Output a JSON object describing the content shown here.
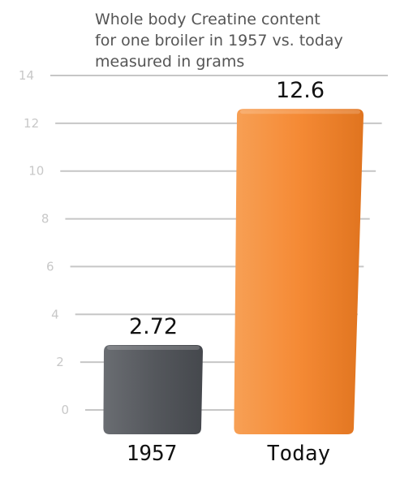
{
  "chart_data": {
    "type": "bar",
    "title_lines": [
      "Whole body Creatine content",
      "for one broiler in 1957 vs. today",
      "measured in grams"
    ],
    "categories": [
      "1957",
      "Today"
    ],
    "values": [
      2.72,
      12.6
    ],
    "value_labels": [
      "2.72",
      "12.6"
    ],
    "bar_colors": [
      "#55585d",
      "#f58a35"
    ],
    "yticks": [
      "0",
      "2",
      "4",
      "6",
      "8",
      "10",
      "12",
      "14"
    ],
    "ylim": [
      0,
      14
    ],
    "grid": true,
    "legend": "none"
  }
}
